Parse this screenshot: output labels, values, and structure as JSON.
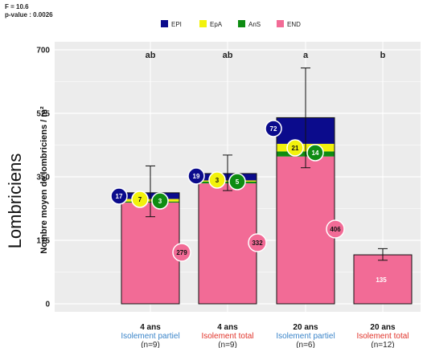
{
  "stats": {
    "f": "F = 10.6",
    "p": "p-value : 0.0026"
  },
  "side_label": "Lombriciens",
  "colors": {
    "EPI": "#0b0b8c",
    "EpA": "#f2f20c",
    "AnS": "#0e8c12",
    "END": "#f26b96",
    "panel": "#ececec",
    "grid": "#ffffff",
    "blue_text": "#3a84c9",
    "red_text": "#e0332a"
  },
  "chart_data": {
    "type": "bar",
    "stacked": true,
    "ylabel": "Nombre moyen de lombriciens / m²",
    "ylim": [
      0,
      700
    ],
    "yticks": [
      "0",
      "175",
      "350",
      "525",
      "700"
    ],
    "grid": true,
    "legend_position": "top",
    "categories": [
      {
        "line1": "4 ans",
        "line2": "Isolement partiel",
        "line2_color": "blue",
        "line3": "(n=9)",
        "letter": "ab"
      },
      {
        "line1": "4 ans",
        "line2": "Isolement total",
        "line2_color": "red",
        "line3": "(n=9)",
        "letter": "ab"
      },
      {
        "line1": "20 ans",
        "line2": "Isolement partiel",
        "line2_color": "blue",
        "line3": "(n=6)",
        "letter": "a"
      },
      {
        "line1": "20 ans",
        "line2": "Isolement total",
        "line2_color": "red",
        "line3": "(n=12)",
        "letter": "b"
      }
    ],
    "series": [
      {
        "name": "EPI",
        "values": [
          17,
          19,
          72,
          0
        ],
        "labels": [
          "17",
          "19",
          "72",
          ""
        ]
      },
      {
        "name": "EpA",
        "values": [
          7,
          3,
          21,
          0
        ],
        "labels": [
          "7",
          "3",
          "21",
          ""
        ]
      },
      {
        "name": "AnS",
        "values": [
          3,
          5,
          14,
          0
        ],
        "labels": [
          "3",
          "5",
          "14",
          ""
        ]
      },
      {
        "name": "END",
        "values": [
          279,
          332,
          406,
          135
        ],
        "labels": [
          "279",
          "332",
          "406",
          "135"
        ]
      }
    ],
    "totals": [
      306,
      359,
      513,
      135
    ],
    "error_bars": [
      [
        240,
        380
      ],
      [
        312,
        410
      ],
      [
        375,
        650
      ],
      [
        120,
        152
      ]
    ]
  }
}
